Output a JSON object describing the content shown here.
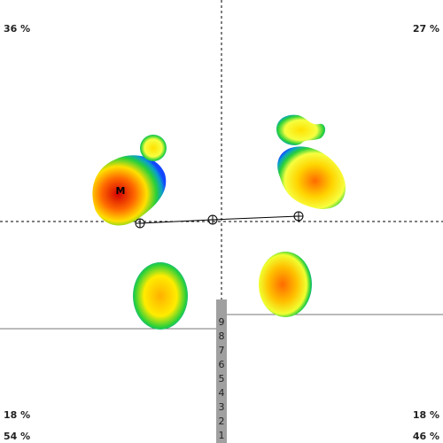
{
  "quadrants": {
    "top_left": "36 %",
    "top_right": "27 %",
    "bottom_left_upper": "18 %",
    "bottom_left_lower": "54 %",
    "bottom_right_upper": "18 %",
    "bottom_right_lower": "46 %"
  },
  "max_marker": "M",
  "scale_ticks": [
    "9",
    "8",
    "7",
    "6",
    "5",
    "4",
    "3",
    "2",
    "1"
  ]
}
